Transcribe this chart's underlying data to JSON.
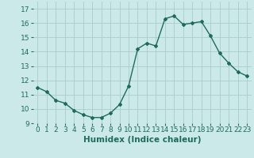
{
  "x": [
    0,
    1,
    2,
    3,
    4,
    5,
    6,
    7,
    8,
    9,
    10,
    11,
    12,
    13,
    14,
    15,
    16,
    17,
    18,
    19,
    20,
    21,
    22,
    23
  ],
  "y": [
    11.5,
    11.2,
    10.6,
    10.4,
    9.9,
    9.6,
    9.4,
    9.4,
    9.7,
    10.3,
    11.6,
    14.2,
    14.6,
    14.4,
    16.3,
    16.5,
    15.9,
    16.0,
    16.1,
    15.1,
    13.9,
    13.2,
    12.6,
    12.3
  ],
  "line_color": "#1e6b5e",
  "marker": "D",
  "marker_size": 2.0,
  "bg_color": "#cce9e9",
  "grid_color": "#aacccc",
  "xlabel": "Humidex (Indice chaleur)",
  "xlim": [
    -0.5,
    23.5
  ],
  "ylim": [
    9.0,
    17.5
  ],
  "xticks": [
    0,
    1,
    2,
    3,
    4,
    5,
    6,
    7,
    8,
    9,
    10,
    11,
    12,
    13,
    14,
    15,
    16,
    17,
    18,
    19,
    20,
    21,
    22,
    23
  ],
  "yticks": [
    9,
    10,
    11,
    12,
    13,
    14,
    15,
    16,
    17
  ],
  "tick_fontsize": 6.5,
  "xlabel_fontsize": 7.5,
  "line_width": 1.0
}
